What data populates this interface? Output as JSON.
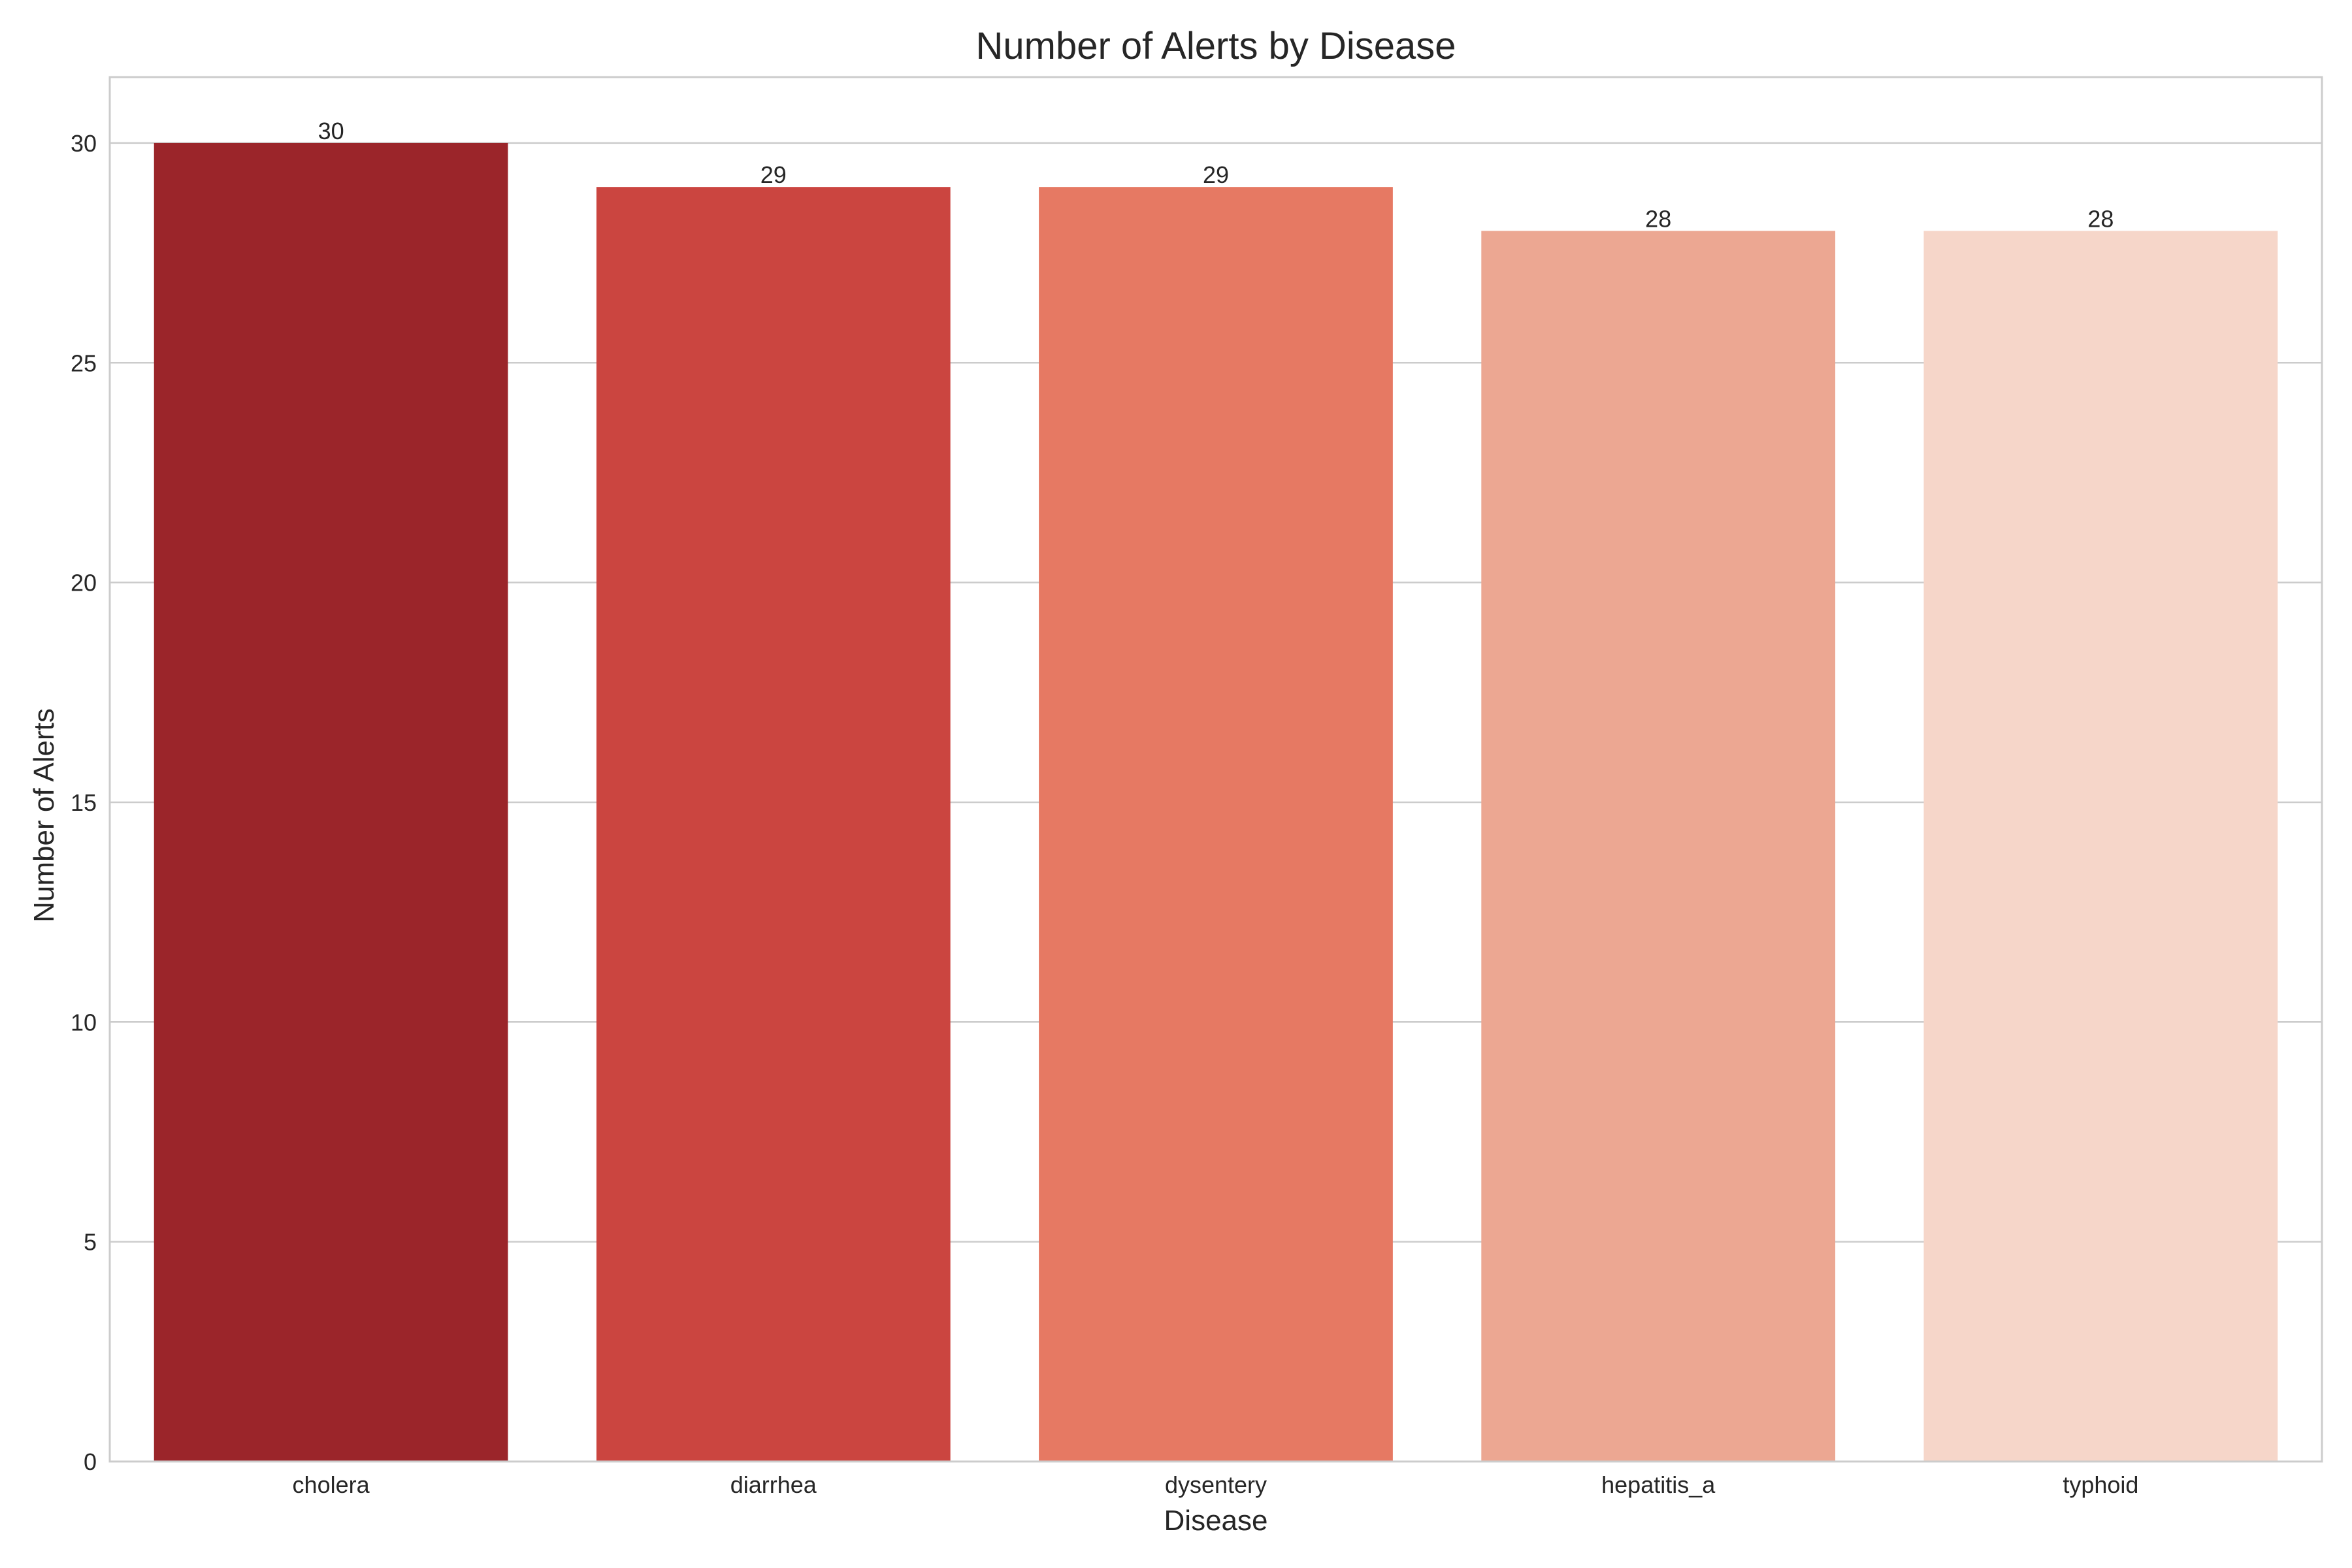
{
  "chart_data": {
    "type": "bar",
    "title": "Number of Alerts by Disease",
    "xlabel": "Disease",
    "ylabel": "Number of Alerts",
    "categories": [
      "cholera",
      "diarrhea",
      "dysentery",
      "hepatitis_a",
      "typhoid"
    ],
    "values": [
      30,
      29,
      29,
      28,
      28
    ],
    "data_labels": [
      "30",
      "29",
      "29",
      "28",
      "28"
    ],
    "colors": [
      "#9b252a",
      "#cb4540",
      "#e67963",
      "#eca792",
      "#f6d6c9"
    ],
    "ylim": [
      0,
      31.5
    ],
    "yticks": [
      0,
      5,
      10,
      15,
      20,
      25,
      30
    ],
    "ytick_labels": [
      "0",
      "5",
      "10",
      "15",
      "20",
      "25",
      "30"
    ],
    "grid": "y",
    "grid_color": "#cccccc",
    "text_color": "#262626"
  }
}
